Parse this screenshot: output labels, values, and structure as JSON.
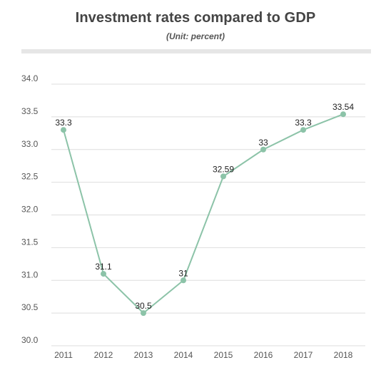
{
  "chart_data": {
    "type": "line",
    "title": "Investment rates compared to GDP",
    "subtitle": "(Unit: percent)",
    "xlabel": "",
    "ylabel": "",
    "x": [
      "2011",
      "2012",
      "2013",
      "2014",
      "2015",
      "2016",
      "2017",
      "2018"
    ],
    "series": [
      {
        "values": [
          33.3,
          31.1,
          30.5,
          31.0,
          32.59,
          33.0,
          33.3,
          33.54
        ],
        "labels": [
          "33.3",
          "31.1",
          "30.5",
          "31",
          "32.59",
          "33",
          "33.3",
          "33.54"
        ]
      }
    ],
    "ylim": [
      30.0,
      34.0
    ],
    "yticks": [
      "30.0",
      "30.5",
      "31.0",
      "31.5",
      "32.0",
      "32.5",
      "33.0",
      "33.5",
      "34.0"
    ],
    "grid": true,
    "line_color": "#8cc3a8",
    "marker_color": "#8cc3a8",
    "grid_color": "#dddddd"
  }
}
